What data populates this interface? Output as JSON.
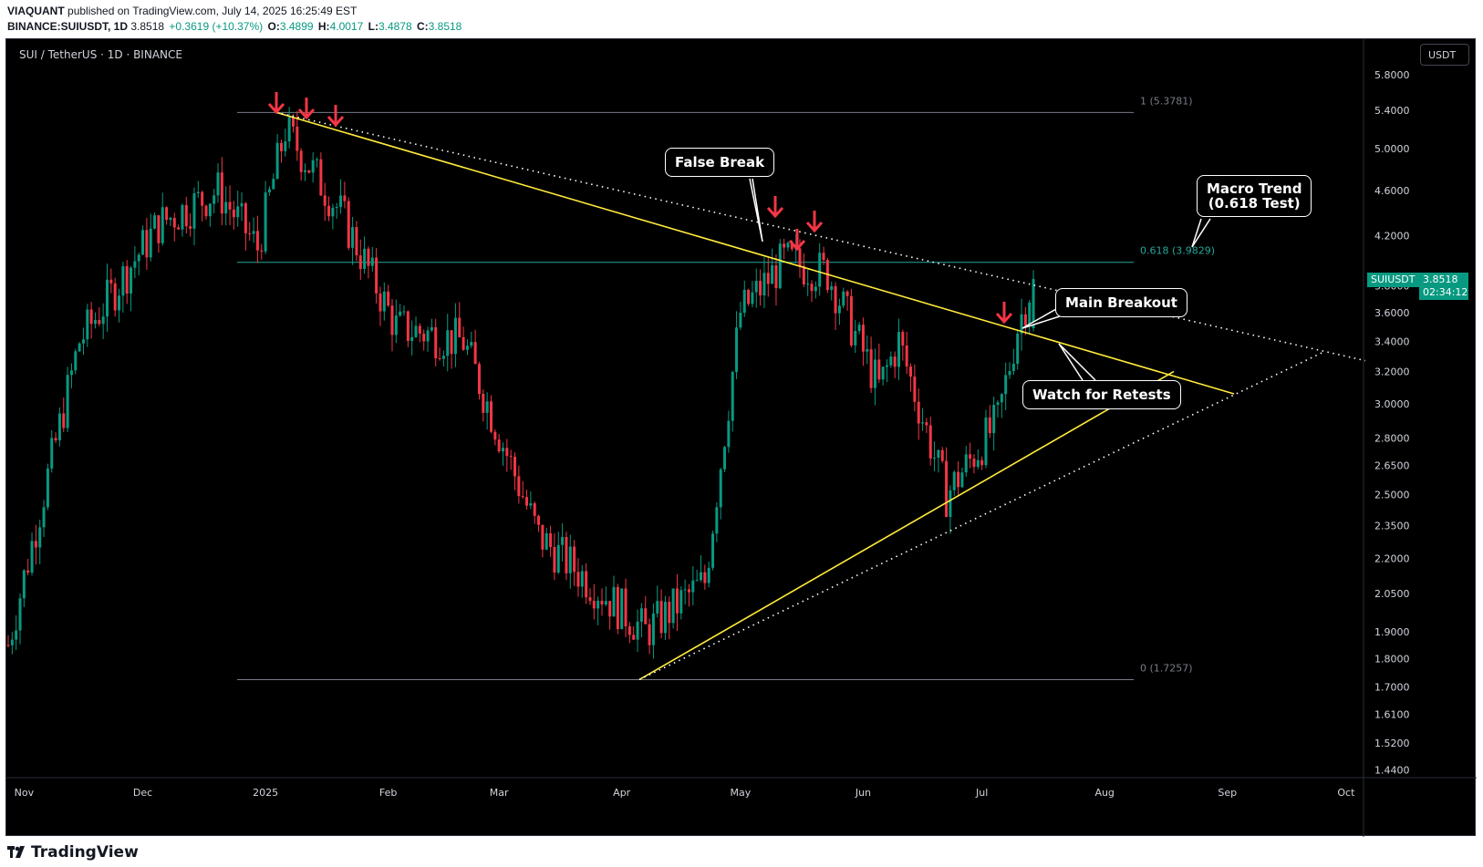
{
  "header": {
    "author": "VIAQUANT",
    "published": "published on TradingView.com, July 14, 2025 16:25:49 EST",
    "symbol_line": "BINANCE:SUIUSDT, 1D",
    "last": "3.8518",
    "change": "+0.3619 (+10.37%)",
    "o_label": "O:",
    "o": "3.4899",
    "h_label": "H:",
    "h": "4.0017",
    "l_label": "L:",
    "l": "3.4878",
    "c_label": "C:",
    "c": "3.8518"
  },
  "chart_header": {
    "title": "SUI / TetherUS · 1D · BINANCE",
    "currency_button": "USDT"
  },
  "footer": {
    "brand": "TradingView"
  },
  "annotations": {
    "false_break": "False Break",
    "macro_trend_1": "Macro Trend",
    "macro_trend_2": "(0.618 Test)",
    "main_breakout": "Main Breakout",
    "watch_retests": "Watch for Retests"
  },
  "price_tags": {
    "symbol": "SUIUSDT",
    "price": "3.8518",
    "countdown": "02:34:12"
  },
  "colors": {
    "up": "#089981",
    "down": "#f23645",
    "trendline": "#ffeb3b",
    "fib": "#26a69a",
    "arrow": "#f23645"
  },
  "chart_data": {
    "type": "candlestick",
    "title": "SUI / TetherUS · 1D · BINANCE",
    "y_scale": "log",
    "y_ticks": [
      "5.8000",
      "5.4000",
      "5.0000",
      "4.6000",
      "4.2000",
      "3.8000",
      "3.6000",
      "3.4000",
      "3.2000",
      "3.0000",
      "2.8000",
      "2.6500",
      "2.5000",
      "2.3500",
      "2.2000",
      "2.0500",
      "1.9000",
      "1.8000",
      "1.7000",
      "1.6100",
      "1.5200",
      "1.4400"
    ],
    "x_ticks": [
      "Nov",
      "Dec",
      "2025",
      "Feb",
      "Mar",
      "Apr",
      "May",
      "Jun",
      "Jul",
      "Aug",
      "Sep",
      "Oct"
    ],
    "fib_levels": [
      {
        "label": "1 (5.3781)",
        "price": 5.3781
      },
      {
        "label": "0.618 (3.9829)",
        "price": 3.9829
      },
      {
        "label": "0 (1.7257)",
        "price": 1.7257
      }
    ],
    "last_price": 3.8518,
    "anchor_prices": [
      {
        "date": "2024-10-28",
        "price": 1.85
      },
      {
        "date": "2024-11-15",
        "price": 3.4
      },
      {
        "date": "2024-12-05",
        "price": 4.3
      },
      {
        "date": "2024-12-20",
        "price": 4.6
      },
      {
        "date": "2024-12-30",
        "price": 4.1
      },
      {
        "date": "2025-01-06",
        "price": 5.2
      },
      {
        "date": "2025-01-20",
        "price": 4.4
      },
      {
        "date": "2025-02-03",
        "price": 3.5
      },
      {
        "date": "2025-02-20",
        "price": 3.4
      },
      {
        "date": "2025-03-11",
        "price": 2.3
      },
      {
        "date": "2025-04-07",
        "price": 1.9
      },
      {
        "date": "2025-04-22",
        "price": 2.1
      },
      {
        "date": "2025-05-01",
        "price": 3.6
      },
      {
        "date": "2025-05-12",
        "price": 4.0
      },
      {
        "date": "2025-05-23",
        "price": 3.9
      },
      {
        "date": "2025-06-05",
        "price": 3.1
      },
      {
        "date": "2025-06-10",
        "price": 3.4
      },
      {
        "date": "2025-06-22",
        "price": 2.5
      },
      {
        "date": "2025-07-05",
        "price": 2.9
      },
      {
        "date": "2025-07-10",
        "price": 3.5
      },
      {
        "date": "2025-07-14",
        "price": 3.85
      }
    ]
  }
}
